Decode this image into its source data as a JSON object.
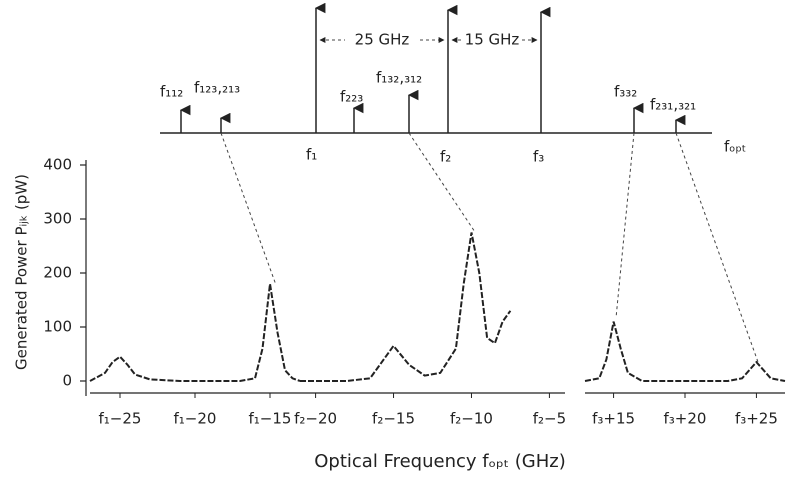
{
  "diagram": {
    "labels": [
      "f₁₁₂",
      "f₁₂₃,₂₁₃",
      "f₁",
      "f₂₂₃",
      "f₁₃₂,₃₁₂",
      "f₂",
      "f₃",
      "f₃₃₂",
      "f₂₃₁,₃₂₁"
    ],
    "spacings": [
      "25 GHz",
      "15 GHz"
    ],
    "axis_label": "fₒₚₜ"
  },
  "chart_data": {
    "type": "line",
    "y_label": "Generated Power Pᵢⱼₖ (pW)",
    "x_label": "Optical Frequency fₒₚₜ (GHz)",
    "ylim": [
      0,
      400
    ],
    "yticks": [
      0,
      100,
      200,
      300,
      400
    ],
    "color": "#222222",
    "panels": [
      {
        "xlim": [
          -27,
          -13
        ],
        "xticks": [
          {
            "value": -25,
            "label": "f₁−25"
          },
          {
            "value": -20,
            "label": "f₁−20"
          },
          {
            "value": -15,
            "label": "f₁−15"
          }
        ],
        "x": [
          -27,
          -26,
          -25.5,
          -25,
          -24.5,
          -24,
          -23,
          -21,
          -19,
          -17,
          -16,
          -15.5,
          -15,
          -14.5,
          -14,
          -13.5,
          -13
        ],
        "values": [
          0,
          15,
          35,
          45,
          30,
          12,
          3,
          0,
          0,
          0,
          5,
          60,
          180,
          90,
          20,
          5,
          0
        ]
      },
      {
        "xlim": [
          -21,
          -4
        ],
        "xticks": [
          {
            "value": -20,
            "label": "f₂−20"
          },
          {
            "value": -15,
            "label": "f₂−15"
          },
          {
            "value": -10,
            "label": "f₂−10"
          },
          {
            "value": -5,
            "label": "f₂−5"
          }
        ],
        "x": [
          -21,
          -18,
          -16.5,
          -16,
          -15,
          -14,
          -13,
          -12,
          -11,
          -10.5,
          -10,
          -9.5,
          -9,
          -8.5,
          -8,
          -7.5
        ],
        "values": [
          0,
          0,
          5,
          25,
          65,
          30,
          10,
          15,
          60,
          180,
          275,
          200,
          80,
          70,
          110,
          130
        ]
      },
      {
        "xlim": [
          13,
          27
        ],
        "xticks": [
          {
            "value": 15,
            "label": "f₃+15"
          },
          {
            "value": 20,
            "label": "f₃+20"
          },
          {
            "value": 25,
            "label": "f₃+25"
          }
        ],
        "x": [
          13,
          14,
          14.5,
          15,
          15.5,
          16,
          17,
          20,
          23,
          24,
          24.5,
          25,
          25.5,
          26,
          27
        ],
        "values": [
          0,
          5,
          40,
          110,
          60,
          15,
          0,
          0,
          0,
          5,
          20,
          35,
          20,
          5,
          0
        ]
      }
    ]
  }
}
